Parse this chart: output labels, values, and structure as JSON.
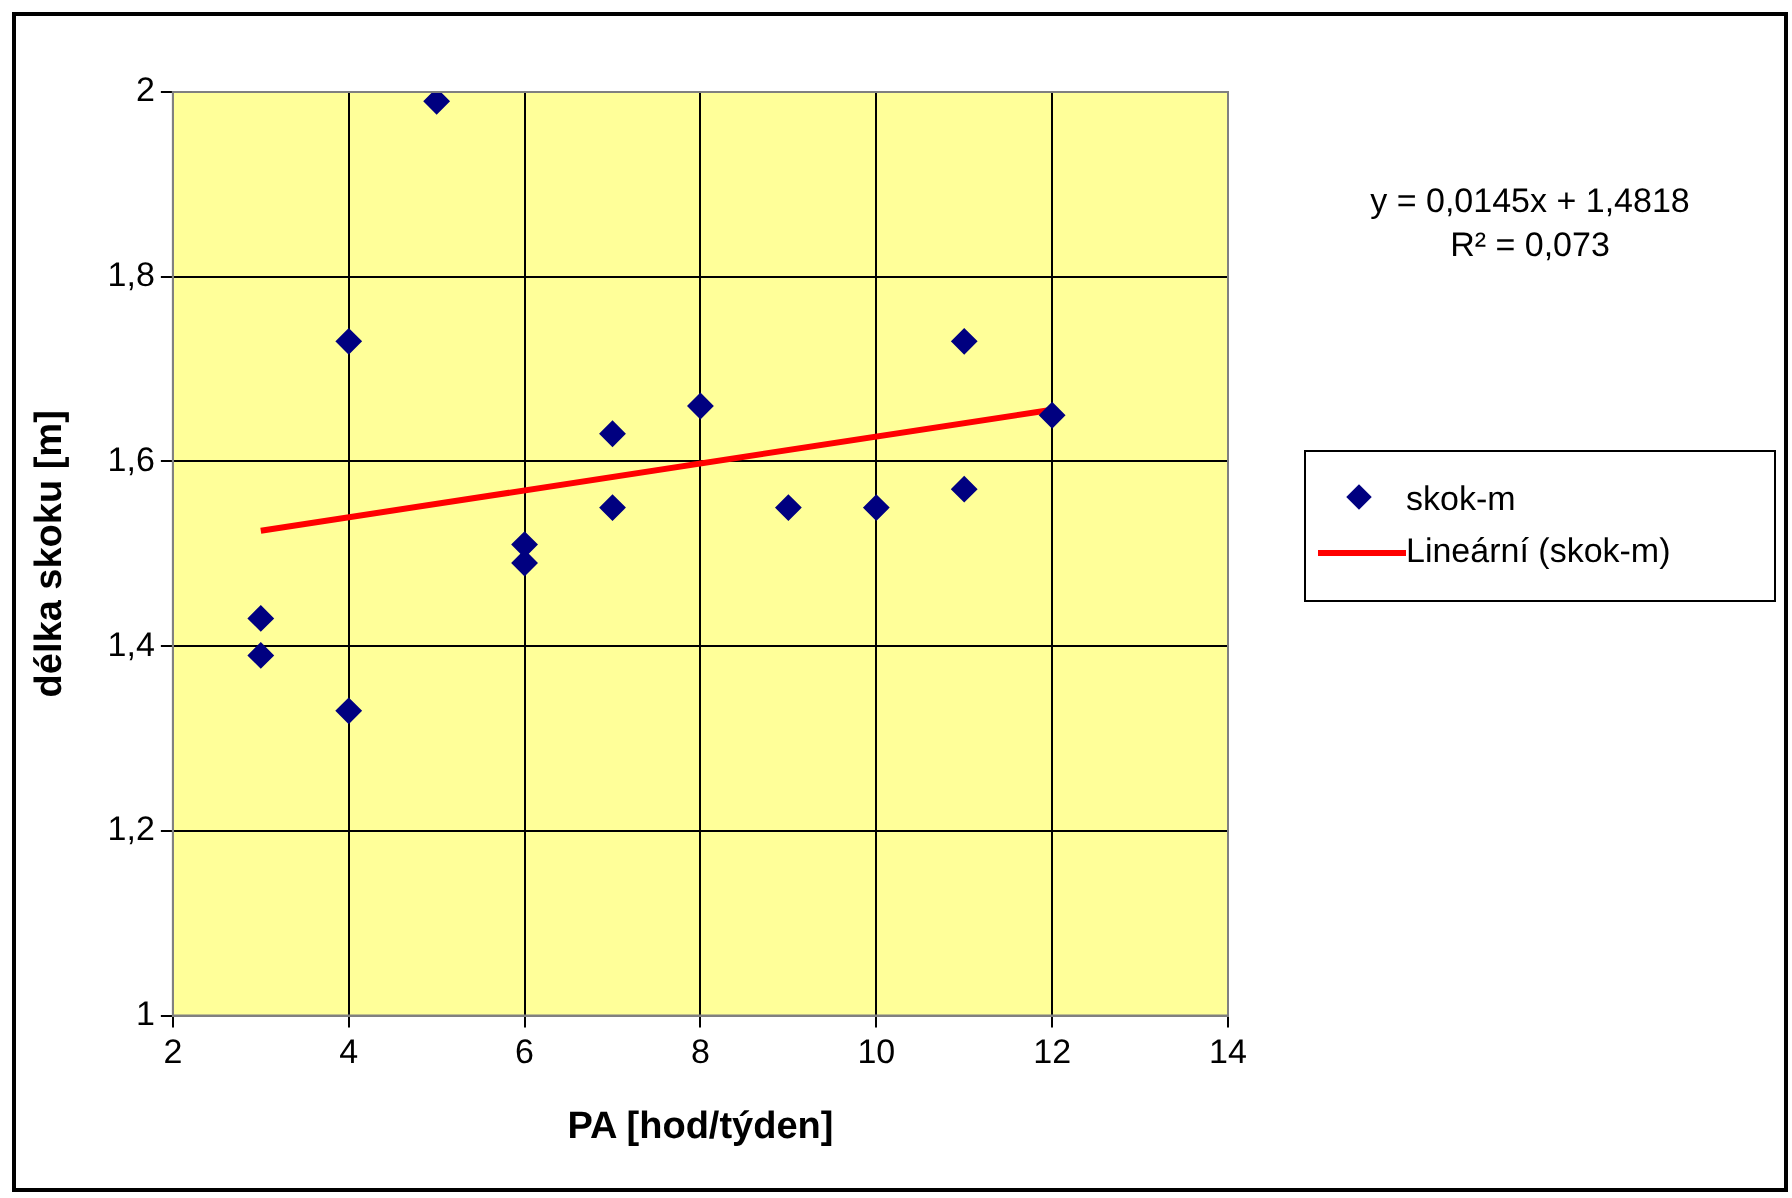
{
  "chart_data": {
    "type": "scatter",
    "xlabel": "PA [hod/týden]",
    "ylabel": "délka skoku [m]",
    "series": [
      {
        "name": "skok-m",
        "type": "scatter",
        "color": "#000080",
        "marker": "diamond",
        "x": [
          3,
          3,
          4,
          4,
          5,
          6,
          6,
          7,
          7,
          8,
          9,
          10,
          11,
          11,
          12
        ],
        "values": [
          1.43,
          1.39,
          1.73,
          1.33,
          1.99,
          1.51,
          1.49,
          1.63,
          1.55,
          1.66,
          1.55,
          1.55,
          1.73,
          1.57,
          1.65
        ]
      },
      {
        "name": "Lineární (skok-m)",
        "type": "line",
        "color": "#ff0000",
        "marker": "none",
        "x": [
          3,
          12
        ],
        "values": [
          1.525,
          1.656
        ]
      }
    ],
    "xlim": [
      2,
      14
    ],
    "xticks": [
      2,
      4,
      6,
      8,
      10,
      12,
      14
    ],
    "ylim": [
      1,
      2
    ],
    "yticks": [
      {
        "value": 1,
        "label": "1"
      },
      {
        "value": 1.2,
        "label": "1,2"
      },
      {
        "value": 1.4,
        "label": "1,4"
      },
      {
        "value": 1.6,
        "label": "1,6"
      },
      {
        "value": 1.8,
        "label": "1,8"
      },
      {
        "value": 2,
        "label": "2"
      }
    ],
    "grid": true,
    "legend": "right",
    "annotations": [
      "y = 0,0145x + 1,4818",
      "R² = 0,073"
    ]
  }
}
